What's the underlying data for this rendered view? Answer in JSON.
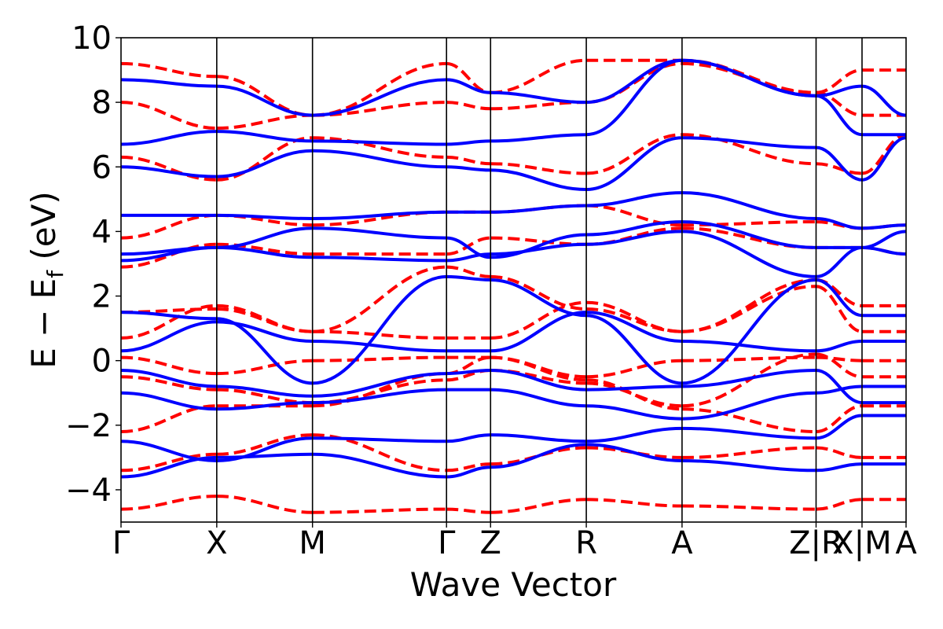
{
  "chart_data": {
    "type": "line",
    "title": "",
    "xlabel": "Wave Vector",
    "ylabel": "E − E_f (eV)",
    "ylabel_parts": {
      "main": "E − E",
      "sub": "f",
      "unit": "(eV)"
    },
    "ylim": [
      -5,
      10
    ],
    "yticks": [
      -4,
      -2,
      0,
      2,
      4,
      6,
      8,
      10
    ],
    "ytick_labels": [
      "−4",
      "−2",
      "0",
      "2",
      "4",
      "6",
      "8",
      "10"
    ],
    "kpath": [
      {
        "label": "Γ",
        "x": 0.0
      },
      {
        "label": "X",
        "x": 0.5
      },
      {
        "label": "M",
        "x": 1.0
      },
      {
        "label": "Γ",
        "x": 1.7
      },
      {
        "label": "Z",
        "x": 1.93
      },
      {
        "label": "R",
        "x": 2.43
      },
      {
        "label": "A",
        "x": 2.93
      },
      {
        "label": "Z|R",
        "x": 3.63
      },
      {
        "label": "X|M",
        "x": 3.87
      },
      {
        "label": "A",
        "x": 4.1
      }
    ],
    "xlim": [
      0.0,
      4.1
    ],
    "segments": [
      [
        0,
        1
      ],
      [
        1,
        2
      ],
      [
        2,
        3
      ],
      [
        3,
        4
      ],
      [
        4,
        5
      ],
      [
        5,
        6
      ],
      [
        6,
        7
      ],
      [
        7,
        8
      ],
      [
        8,
        9
      ]
    ],
    "series": [
      {
        "name": "",
        "color": "#0000ff",
        "style": "solid"
      },
      {
        "name": "",
        "color": "#ff0000",
        "style": "dashed"
      }
    ],
    "bands": [
      {
        "series": 0,
        "values": [
          [
            -3.6,
            -3.0,
            -2.9,
            -3.6,
            -3.3,
            -2.6,
            -3.1,
            -3.4,
            -3.2,
            -3.2
          ],
          [
            -2.5,
            -3.1,
            -2.4,
            -2.5,
            -2.3,
            -2.5,
            -2.1,
            -2.4,
            -1.7,
            -1.7
          ],
          [
            -1.0,
            -1.5,
            -1.3,
            -0.9,
            -0.9,
            -1.4,
            -1.8,
            -1.0,
            -0.8,
            -0.8
          ],
          [
            -0.3,
            -0.8,
            -1.1,
            -0.4,
            -0.3,
            -0.9,
            -0.8,
            -0.3,
            -1.3,
            -1.3
          ],
          [
            0.3,
            1.2,
            0.6,
            0.3,
            0.3,
            1.5,
            0.6,
            0.3,
            0.6,
            0.6
          ],
          [
            1.5,
            1.3,
            -0.7,
            2.6,
            2.5,
            1.4,
            -0.7,
            2.5,
            1.4,
            1.4
          ],
          [
            3.1,
            3.5,
            3.2,
            3.1,
            3.3,
            3.6,
            4.0,
            2.6,
            3.5,
            3.3
          ],
          [
            3.3,
            3.5,
            4.1,
            3.8,
            3.2,
            3.9,
            4.3,
            3.5,
            3.5,
            4.0
          ],
          [
            4.5,
            4.5,
            4.4,
            4.6,
            4.6,
            4.8,
            5.2,
            4.4,
            4.1,
            4.2
          ],
          [
            6.0,
            5.7,
            6.5,
            6.0,
            5.9,
            5.3,
            6.9,
            6.6,
            5.6,
            6.9
          ],
          [
            6.7,
            7.1,
            6.8,
            6.7,
            6.8,
            7.0,
            9.3,
            8.2,
            7.0,
            7.0
          ],
          [
            8.7,
            8.5,
            7.6,
            8.7,
            8.3,
            8.0,
            9.3,
            8.2,
            8.5,
            7.6
          ]
        ]
      },
      {
        "series": 1,
        "values": [
          [
            -4.6,
            -4.2,
            -4.7,
            -4.6,
            -4.7,
            -4.3,
            -4.5,
            -4.6,
            -4.3,
            -4.3
          ],
          [
            -3.4,
            -2.9,
            -2.3,
            -3.4,
            -3.2,
            -2.7,
            -3.0,
            -2.7,
            -3.0,
            -3.0
          ],
          [
            -2.2,
            -1.4,
            -1.4,
            -0.4,
            0.1,
            -0.6,
            -1.5,
            -2.2,
            -1.4,
            -1.4
          ],
          [
            -0.5,
            -0.9,
            -1.3,
            -0.6,
            -0.3,
            -0.7,
            -1.4,
            0.2,
            -0.5,
            -0.5
          ],
          [
            0.1,
            -0.4,
            0.0,
            0.1,
            0.1,
            -0.5,
            0.0,
            0.1,
            0.0,
            0.0
          ],
          [
            0.7,
            1.7,
            0.9,
            0.7,
            0.7,
            1.8,
            0.9,
            2.3,
            0.9,
            0.9
          ],
          [
            1.5,
            1.6,
            0.9,
            2.9,
            2.6,
            1.6,
            0.9,
            2.5,
            1.7,
            1.7
          ],
          [
            2.9,
            3.6,
            3.3,
            3.3,
            3.8,
            3.6,
            4.1,
            3.5,
            3.5,
            3.3
          ],
          [
            3.8,
            4.5,
            4.2,
            4.6,
            4.6,
            4.8,
            4.2,
            4.3,
            4.1,
            4.2
          ],
          [
            6.3,
            5.6,
            6.9,
            6.3,
            6.1,
            5.8,
            7.0,
            6.1,
            5.8,
            7.0
          ],
          [
            8.0,
            7.2,
            7.6,
            8.0,
            7.8,
            8.0,
            9.2,
            8.3,
            7.6,
            7.6
          ],
          [
            9.2,
            8.8,
            7.6,
            9.2,
            8.3,
            9.3,
            9.3,
            8.3,
            9.0,
            9.0
          ]
        ]
      }
    ]
  }
}
